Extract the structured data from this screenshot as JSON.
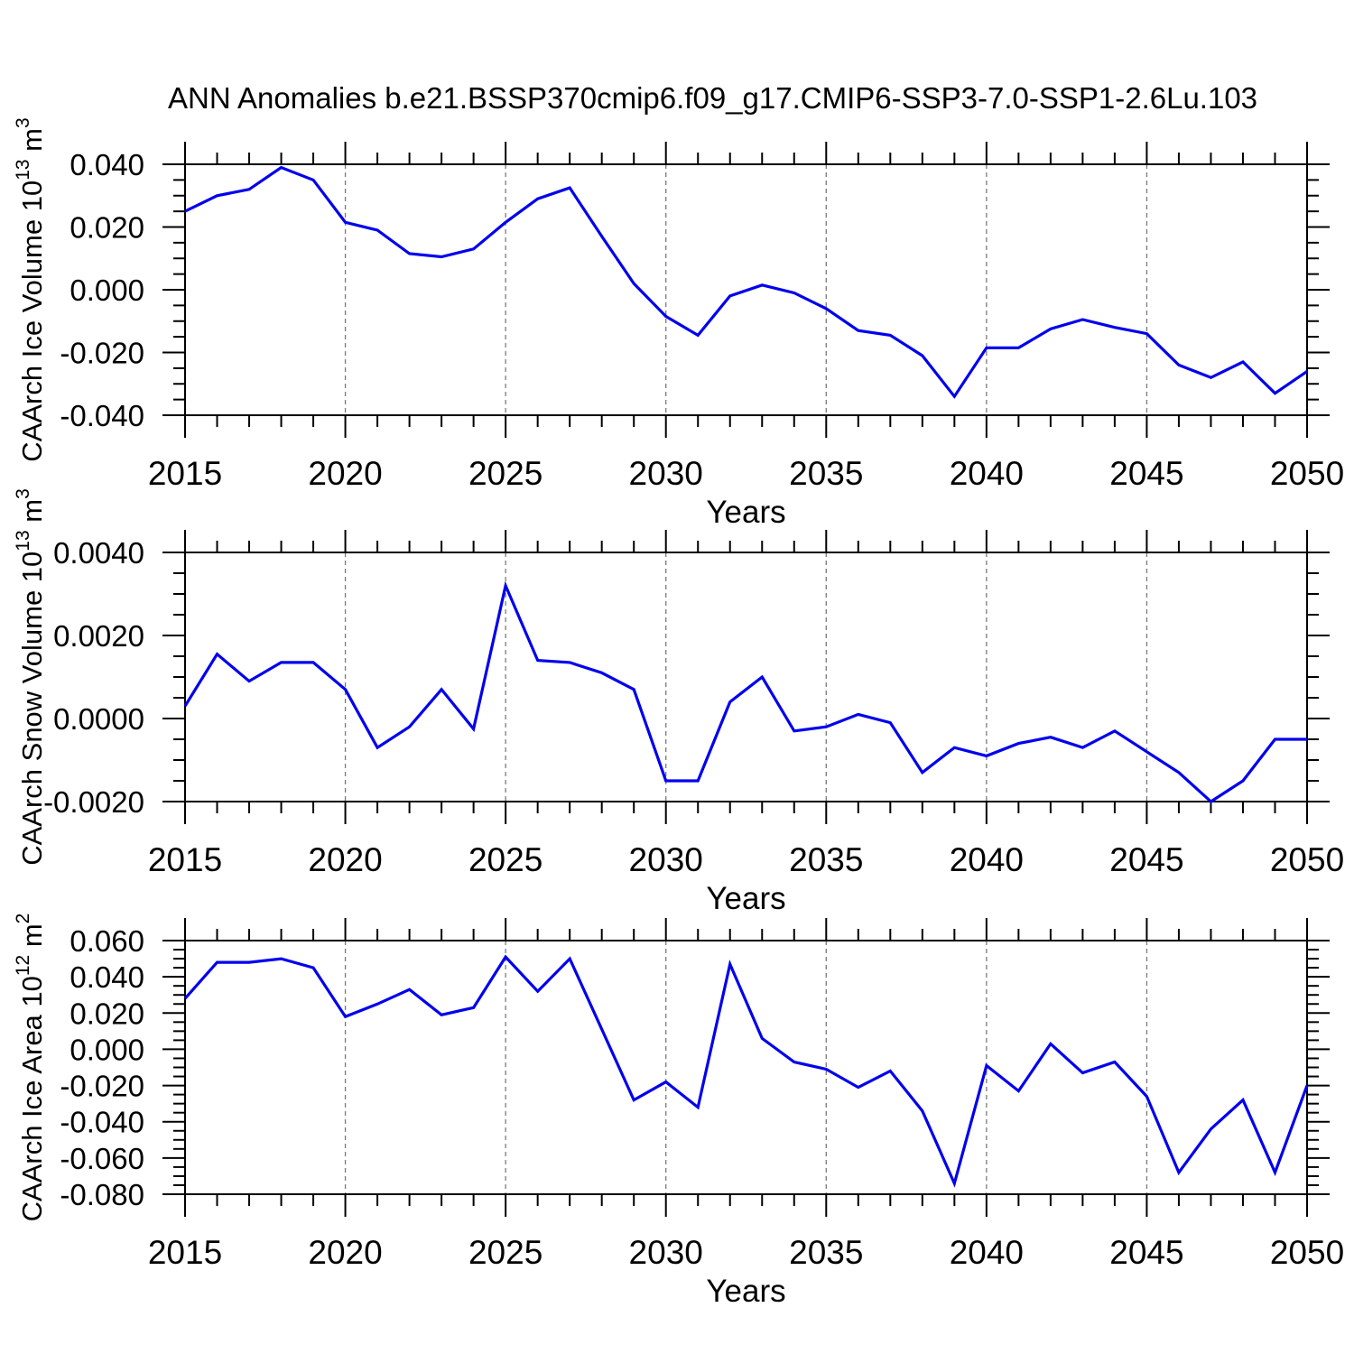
{
  "title": "ANN Anomalies b.e21.BSSP370cmip6.f09_g17.CMIP6-SSP3-7.0-SSP1-2.6Lu.103",
  "colors": {
    "line": "#0000EE",
    "grid": "#7a7a7a",
    "axis": "#000000",
    "background": "#FFFFFF"
  },
  "chart_data": [
    {
      "type": "line",
      "name": "caarch-ice-volume",
      "xlabel": "Years",
      "ylabel_text": "CAArch Ice Volume 10¹³ m³",
      "ylabel_parts": [
        {
          "t": "CAArch Ice Volume 10"
        },
        {
          "t": "13",
          "sup": true
        },
        {
          "t": " m"
        },
        {
          "t": "3",
          "sup": true
        }
      ],
      "x": [
        2015,
        2016,
        2017,
        2018,
        2019,
        2020,
        2021,
        2022,
        2023,
        2024,
        2025,
        2026,
        2027,
        2028,
        2029,
        2030,
        2031,
        2032,
        2033,
        2034,
        2035,
        2036,
        2037,
        2038,
        2039,
        2040,
        2041,
        2042,
        2043,
        2044,
        2045,
        2046,
        2047,
        2048,
        2049,
        2050
      ],
      "values": [
        0.025,
        0.03,
        0.032,
        0.039,
        0.035,
        0.0215,
        0.019,
        0.0115,
        0.0105,
        0.013,
        0.0215,
        0.029,
        0.0325,
        0.017,
        0.002,
        -0.0085,
        -0.0145,
        -0.002,
        0.0015,
        -0.001,
        -0.006,
        -0.013,
        -0.0145,
        -0.021,
        -0.034,
        -0.0185,
        -0.0185,
        -0.0125,
        -0.0095,
        -0.012,
        -0.014,
        -0.024,
        -0.028,
        -0.023,
        -0.033,
        -0.026
      ],
      "ylim": [
        -0.04,
        0.04
      ],
      "ytick_major": 0.02,
      "ytick_minor": 0.005,
      "ytick_values": [
        0.04,
        0.02,
        0.0,
        -0.02,
        -0.04
      ],
      "ytick_labels": [
        "0.040",
        "0.020",
        "0.000",
        "-0.020",
        "-0.040"
      ],
      "xtick_values": [
        2015,
        2020,
        2025,
        2030,
        2035,
        2040,
        2045,
        2050
      ],
      "xtick_labels": [
        "2015",
        "2020",
        "2025",
        "2030",
        "2035",
        "2040",
        "2045",
        "2050"
      ],
      "grid_years": [
        2020,
        2025,
        2030,
        2035,
        2040,
        2045
      ],
      "grid_on": true,
      "legend": "none"
    },
    {
      "type": "line",
      "name": "caarch-snow-volume",
      "xlabel": "Years",
      "ylabel_text": "CAArch Snow Volume 10¹³ m³",
      "ylabel_parts": [
        {
          "t": "CAArch Snow Volume 10"
        },
        {
          "t": "13",
          "sup": true
        },
        {
          "t": " m"
        },
        {
          "t": "3",
          "sup": true
        }
      ],
      "x": [
        2015,
        2016,
        2017,
        2018,
        2019,
        2020,
        2021,
        2022,
        2023,
        2024,
        2025,
        2026,
        2027,
        2028,
        2029,
        2030,
        2031,
        2032,
        2033,
        2034,
        2035,
        2036,
        2037,
        2038,
        2039,
        2040,
        2041,
        2042,
        2043,
        2044,
        2045,
        2046,
        2047,
        2048,
        2049,
        2050
      ],
      "values": [
        0.0003,
        0.00155,
        0.0009,
        0.00135,
        0.00135,
        0.0007,
        -0.0007,
        -0.0002,
        0.0007,
        -0.00025,
        0.0032,
        0.0014,
        0.00135,
        0.0011,
        0.0007,
        -0.0015,
        -0.0015,
        0.0004,
        0.001,
        -0.0003,
        -0.0002,
        0.0001,
        -0.0001,
        -0.0013,
        -0.0007,
        -0.0009,
        -0.0006,
        -0.00045,
        -0.0007,
        -0.0003,
        -0.0008,
        -0.0013,
        -0.002,
        -0.0015,
        -0.0005,
        -0.0005
      ],
      "ylim": [
        -0.002,
        0.004
      ],
      "ytick_major": 0.002,
      "ytick_minor": 0.0005,
      "ytick_values": [
        0.004,
        0.002,
        0.0,
        -0.002
      ],
      "ytick_labels": [
        "0.0040",
        "0.0020",
        "0.0000",
        "-0.0020"
      ],
      "xtick_values": [
        2015,
        2020,
        2025,
        2030,
        2035,
        2040,
        2045,
        2050
      ],
      "xtick_labels": [
        "2015",
        "2020",
        "2025",
        "2030",
        "2035",
        "2040",
        "2045",
        "2050"
      ],
      "grid_years": [
        2020,
        2025,
        2030,
        2035,
        2040,
        2045
      ],
      "grid_on": true,
      "legend": "none"
    },
    {
      "type": "line",
      "name": "caarch-ice-area",
      "xlabel": "Years",
      "ylabel_text": "CAArch Ice Area 10¹² m²",
      "ylabel_parts": [
        {
          "t": "CAArch Ice Area 10"
        },
        {
          "t": "12",
          "sup": true
        },
        {
          "t": " m"
        },
        {
          "t": "2",
          "sup": true
        }
      ],
      "x": [
        2015,
        2016,
        2017,
        2018,
        2019,
        2020,
        2021,
        2022,
        2023,
        2024,
        2025,
        2026,
        2027,
        2028,
        2029,
        2030,
        2031,
        2032,
        2033,
        2034,
        2035,
        2036,
        2037,
        2038,
        2039,
        2040,
        2041,
        2042,
        2043,
        2044,
        2045,
        2046,
        2047,
        2048,
        2049,
        2050
      ],
      "values": [
        0.028,
        0.048,
        0.048,
        0.05,
        0.045,
        0.018,
        0.025,
        0.033,
        0.019,
        0.023,
        0.051,
        0.032,
        0.05,
        0.011,
        -0.028,
        -0.018,
        -0.032,
        0.047,
        0.006,
        -0.007,
        -0.011,
        -0.021,
        -0.012,
        -0.034,
        -0.074,
        -0.009,
        -0.023,
        0.003,
        -0.013,
        -0.007,
        -0.026,
        -0.068,
        -0.044,
        -0.028,
        -0.068,
        -0.02
      ],
      "ylim": [
        -0.08,
        0.06
      ],
      "ytick_major": 0.02,
      "ytick_minor": 0.005,
      "ytick_values": [
        0.06,
        0.04,
        0.02,
        0.0,
        -0.02,
        -0.04,
        -0.06,
        -0.08
      ],
      "ytick_labels": [
        "0.060",
        "0.040",
        "0.020",
        "0.000",
        "-0.020",
        "-0.040",
        "-0.060",
        "-0.080"
      ],
      "xtick_values": [
        2015,
        2020,
        2025,
        2030,
        2035,
        2040,
        2045,
        2050
      ],
      "xtick_labels": [
        "2015",
        "2020",
        "2025",
        "2030",
        "2035",
        "2040",
        "2045",
        "2050"
      ],
      "grid_years": [
        2020,
        2025,
        2030,
        2035,
        2040,
        2045
      ],
      "grid_on": true,
      "legend": "none"
    }
  ]
}
